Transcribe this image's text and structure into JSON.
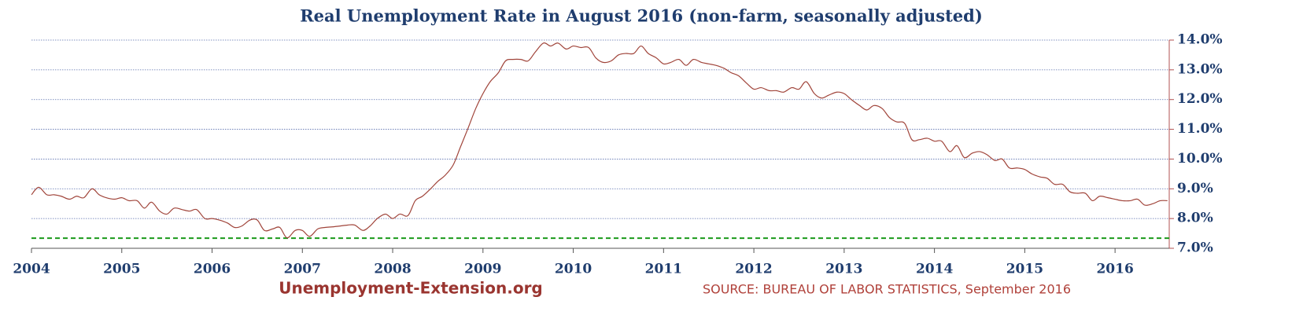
{
  "chart_data": {
    "type": "line",
    "title": "Real Unemployment Rate in August 2016 (non-farm, seasonally adjusted)",
    "footer_site": "Unemployment-Extension.org",
    "footer_source": "SOURCE: BUREAU OF LABOR STATISTICS, September 2016",
    "x": [
      2004.0,
      2004.08,
      2004.17,
      2004.25,
      2004.33,
      2004.42,
      2004.5,
      2004.58,
      2004.67,
      2004.75,
      2004.83,
      2004.92,
      2005.0,
      2005.08,
      2005.17,
      2005.25,
      2005.33,
      2005.42,
      2005.5,
      2005.58,
      2005.67,
      2005.75,
      2005.83,
      2005.92,
      2006.0,
      2006.08,
      2006.17,
      2006.25,
      2006.33,
      2006.42,
      2006.5,
      2006.58,
      2006.67,
      2006.75,
      2006.83,
      2006.92,
      2007.0,
      2007.08,
      2007.17,
      2007.25,
      2007.33,
      2007.42,
      2007.5,
      2007.58,
      2007.67,
      2007.75,
      2007.83,
      2007.92,
      2008.0,
      2008.08,
      2008.17,
      2008.25,
      2008.33,
      2008.42,
      2008.5,
      2008.58,
      2008.67,
      2008.75,
      2008.83,
      2008.92,
      2009.0,
      2009.08,
      2009.17,
      2009.25,
      2009.33,
      2009.42,
      2009.5,
      2009.58,
      2009.67,
      2009.75,
      2009.83,
      2009.92,
      2010.0,
      2010.08,
      2010.17,
      2010.25,
      2010.33,
      2010.42,
      2010.5,
      2010.58,
      2010.67,
      2010.75,
      2010.83,
      2010.92,
      2011.0,
      2011.08,
      2011.17,
      2011.25,
      2011.33,
      2011.42,
      2011.5,
      2011.58,
      2011.67,
      2011.75,
      2011.83,
      2011.92,
      2012.0,
      2012.08,
      2012.17,
      2012.25,
      2012.33,
      2012.42,
      2012.5,
      2012.58,
      2012.67,
      2012.75,
      2012.83,
      2012.92,
      2013.0,
      2013.08,
      2013.17,
      2013.25,
      2013.33,
      2013.42,
      2013.5,
      2013.58,
      2013.67,
      2013.75,
      2013.83,
      2013.92,
      2014.0,
      2014.08,
      2014.17,
      2014.25,
      2014.33,
      2014.42,
      2014.5,
      2014.58,
      2014.67,
      2014.75,
      2014.83,
      2014.92,
      2015.0,
      2015.08,
      2015.17,
      2015.25,
      2015.33,
      2015.42,
      2015.5,
      2015.58,
      2015.67,
      2015.75,
      2015.83,
      2015.92,
      2016.0,
      2016.08,
      2016.17,
      2016.25,
      2016.33,
      2016.42,
      2016.5,
      2016.58
    ],
    "series": [
      {
        "name": "Real Unemployment Rate",
        "color": "#a0443a",
        "values": [
          8.8,
          9.05,
          8.8,
          8.8,
          8.75,
          8.65,
          8.75,
          8.7,
          9.0,
          8.8,
          8.7,
          8.65,
          8.7,
          8.6,
          8.6,
          8.35,
          8.55,
          8.25,
          8.15,
          8.35,
          8.3,
          8.25,
          8.3,
          8.0,
          8.0,
          7.95,
          7.85,
          7.7,
          7.75,
          7.95,
          7.95,
          7.6,
          7.65,
          7.7,
          7.35,
          7.6,
          7.6,
          7.4,
          7.65,
          7.7,
          7.72,
          7.75,
          7.78,
          7.78,
          7.6,
          7.75,
          8.0,
          8.15,
          8.0,
          8.15,
          8.1,
          8.6,
          8.75,
          9.0,
          9.25,
          9.45,
          9.8,
          10.4,
          11.0,
          11.7,
          12.2,
          12.6,
          12.9,
          13.3,
          13.35,
          13.35,
          13.3,
          13.6,
          13.9,
          13.8,
          13.9,
          13.7,
          13.8,
          13.75,
          13.75,
          13.4,
          13.25,
          13.3,
          13.5,
          13.55,
          13.55,
          13.8,
          13.55,
          13.4,
          13.2,
          13.25,
          13.35,
          13.15,
          13.35,
          13.25,
          13.2,
          13.15,
          13.05,
          12.9,
          12.8,
          12.55,
          12.35,
          12.4,
          12.3,
          12.3,
          12.25,
          12.4,
          12.35,
          12.6,
          12.2,
          12.05,
          12.15,
          12.25,
          12.2,
          12.0,
          11.8,
          11.65,
          11.8,
          11.7,
          11.4,
          11.25,
          11.2,
          10.65,
          10.65,
          10.7,
          10.6,
          10.6,
          10.25,
          10.45,
          10.05,
          10.2,
          10.25,
          10.15,
          9.95,
          10.0,
          9.7,
          9.7,
          9.65,
          9.5,
          9.4,
          9.35,
          9.15,
          9.15,
          8.9,
          8.85,
          8.85,
          8.6,
          8.75,
          8.7,
          8.65,
          8.6,
          8.6,
          8.65,
          8.45,
          8.5,
          8.6,
          8.6
        ]
      }
    ],
    "reference_line": {
      "value": 7.34,
      "color": "#1a9a1a"
    },
    "xlim": [
      2004,
      2016.6
    ],
    "xticks": [
      2004,
      2005,
      2006,
      2007,
      2008,
      2009,
      2010,
      2011,
      2012,
      2013,
      2014,
      2015,
      2016
    ],
    "ylim": [
      7,
      14
    ],
    "yticks": [
      {
        "value": 7,
        "label": "7.0%"
      },
      {
        "value": 8,
        "label": "8.0%"
      },
      {
        "value": 9,
        "label": "9.0%"
      },
      {
        "value": 10,
        "label": "10.0%"
      },
      {
        "value": 11,
        "label": "11.0%"
      },
      {
        "value": 12,
        "label": "12.0%"
      },
      {
        "value": 13,
        "label": "13.0%"
      },
      {
        "value": 14,
        "label": "14.0%"
      }
    ],
    "grid": true
  }
}
